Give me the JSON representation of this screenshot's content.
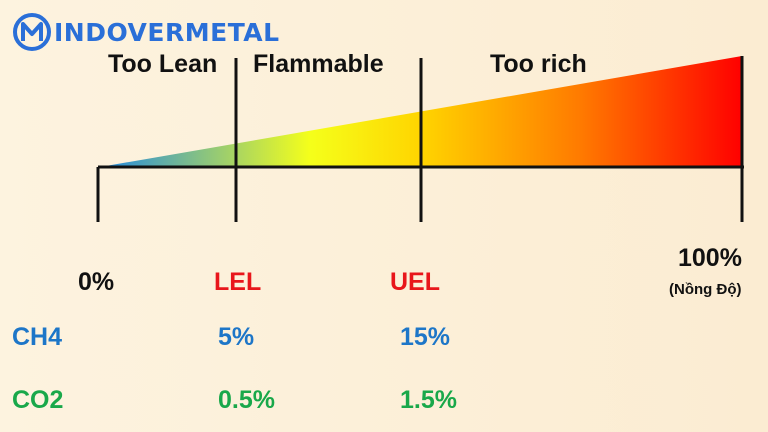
{
  "brand": {
    "name": "INDOVERMETAL",
    "logo_icon": "m-circle-logo-icon",
    "color": "#2a6fd8"
  },
  "zones": [
    {
      "label": "Too Lean"
    },
    {
      "label": "Flammable"
    },
    {
      "label": "Too rich"
    }
  ],
  "gradient_colors": [
    "#1e88e5",
    "#f5ff1a",
    "#ffd500",
    "#ff7a00",
    "#ff0000"
  ],
  "markers": [
    {
      "label": "0%",
      "color": "#111111"
    },
    {
      "label": "LEL",
      "color": "#e8161b"
    },
    {
      "label": "UEL",
      "color": "#e8161b"
    },
    {
      "label": "100%",
      "unit": "(Nồng Độ)",
      "color": "#111111"
    }
  ],
  "gases": [
    {
      "name": "CH4",
      "lel": "5%",
      "uel": "15%",
      "color": "#1d76c8"
    },
    {
      "name": "CO2",
      "lel": "0.5%",
      "uel": "1.5%",
      "color": "#19a84a"
    }
  ]
}
